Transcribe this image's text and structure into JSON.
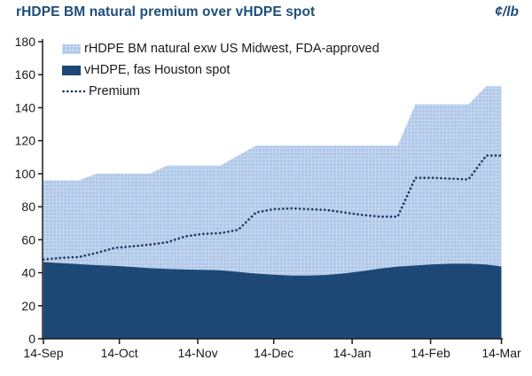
{
  "header": {
    "title": "rHDPE BM natural premium over vHDPE spot",
    "unit": "¢/lb"
  },
  "legend": [
    {
      "label": "rHDPE BM natural exw US Midwest, FDA-approved",
      "swatch": "light-area"
    },
    {
      "label": "vHDPE, fas Houston spot",
      "swatch": "dark-area"
    },
    {
      "label": "Premium",
      "swatch": "dotted-line"
    }
  ],
  "colors": {
    "title": "#1F4E79",
    "light_area": "#AEC7E8",
    "dark_area": "#1D4876",
    "premium_line": "#17375E",
    "axis": "#1A1A1A"
  },
  "chart_data": {
    "type": "area",
    "title": "rHDPE BM natural premium over vHDPE spot",
    "xlabel": "",
    "ylabel": "¢/lb",
    "x_unit": "days since 14-Sep (weekly observations)",
    "x_days": [
      0,
      7,
      14,
      21,
      28,
      35,
      42,
      49,
      56,
      63,
      70,
      77,
      84,
      91,
      98,
      105,
      112,
      119,
      126,
      133,
      140,
      147,
      154,
      161,
      168,
      175,
      181
    ],
    "x_ticks": [
      {
        "label": "14-Sep",
        "day": 0
      },
      {
        "label": "14-Oct",
        "day": 30
      },
      {
        "label": "14-Nov",
        "day": 61
      },
      {
        "label": "14-Dec",
        "day": 91
      },
      {
        "label": "14-Jan",
        "day": 122
      },
      {
        "label": "14-Feb",
        "day": 153
      },
      {
        "label": "14-Mar",
        "day": 181
      }
    ],
    "y_axis": {
      "min": 0,
      "max": 180,
      "step": 20
    },
    "grid": false,
    "legend_position": "top-left-inside",
    "series": [
      {
        "name": "rHDPE BM natural exw US Midwest, FDA-approved",
        "style": "area",
        "color": "#AEC7E8",
        "values": [
          96,
          96,
          96,
          100,
          100,
          100,
          100,
          105,
          105,
          105,
          105,
          111,
          117,
          117,
          117,
          117,
          117,
          117,
          117,
          117,
          117,
          142,
          142,
          142,
          142,
          153,
          153
        ]
      },
      {
        "name": "vHDPE, fas Houston spot",
        "style": "area",
        "color": "#1D4876",
        "values": [
          46.5,
          45.8,
          45.2,
          44.6,
          44.2,
          43.5,
          42.8,
          42.3,
          42,
          41.8,
          41.5,
          40.5,
          39.5,
          38.8,
          38.3,
          38.3,
          38.7,
          39.6,
          41,
          42.5,
          43.7,
          44.4,
          45.1,
          45.5,
          45.5,
          45,
          43.8
        ]
      },
      {
        "name": "Premium",
        "style": "dotted-line",
        "color": "#17375E",
        "values": [
          48,
          49,
          49.5,
          52,
          55,
          56,
          57,
          58.5,
          62,
          63.5,
          64,
          66,
          76.5,
          78.5,
          79,
          78.5,
          78,
          76.5,
          75,
          74,
          74,
          97.5,
          97.5,
          97,
          96.5,
          111,
          111
        ]
      }
    ]
  }
}
